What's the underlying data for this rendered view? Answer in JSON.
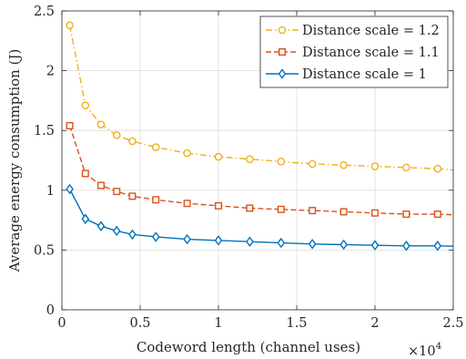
{
  "chart_data": {
    "type": "line",
    "xlabel": "Codeword length (channel uses)",
    "ylabel": "Average energy consumption (J)",
    "x_multiplier_base": "×10",
    "x_multiplier_exp": "4",
    "xlim": [
      0,
      25000
    ],
    "ylim": [
      0,
      2.5
    ],
    "xticks": [
      0,
      5000,
      10000,
      15000,
      20000,
      25000
    ],
    "xtick_labels": [
      "0",
      "0.5",
      "1",
      "1.5",
      "2",
      "2.5"
    ],
    "yticks": [
      0,
      0.5,
      1,
      1.5,
      2,
      2.5
    ],
    "ytick_labels": [
      "0",
      "0.5",
      "1",
      "1.5",
      "2",
      "2.5"
    ],
    "grid": true,
    "legend_position": "top-right",
    "x": [
      500,
      1500,
      2500,
      3500,
      4500,
      6000,
      8000,
      10000,
      12000,
      14000,
      16000,
      18000,
      20000,
      22000,
      24000
    ],
    "series": [
      {
        "name": "Distance scale = 1.2",
        "color": "#EDB120",
        "line_style": "dash-dot",
        "marker": "circle",
        "extends_to_x": 25000,
        "values": [
          2.38,
          1.71,
          1.55,
          1.46,
          1.41,
          1.36,
          1.31,
          1.28,
          1.26,
          1.24,
          1.22,
          1.21,
          1.2,
          1.19,
          1.18
        ],
        "end_value": 1.17
      },
      {
        "name": "Distance scale = 1.1",
        "color": "#D95319",
        "line_style": "dashed",
        "marker": "square",
        "extends_to_x": 25000,
        "values": [
          1.54,
          1.14,
          1.04,
          0.99,
          0.95,
          0.92,
          0.89,
          0.87,
          0.85,
          0.84,
          0.83,
          0.82,
          0.81,
          0.8,
          0.8
        ],
        "end_value": 0.795
      },
      {
        "name": "Distance scale = 1",
        "color": "#0072BD",
        "line_style": "solid",
        "marker": "diamond",
        "extends_to_x": 25000,
        "values": [
          1.01,
          0.76,
          0.7,
          0.66,
          0.63,
          0.61,
          0.59,
          0.58,
          0.57,
          0.56,
          0.55,
          0.545,
          0.54,
          0.535,
          0.535
        ],
        "end_value": 0.532
      }
    ]
  }
}
